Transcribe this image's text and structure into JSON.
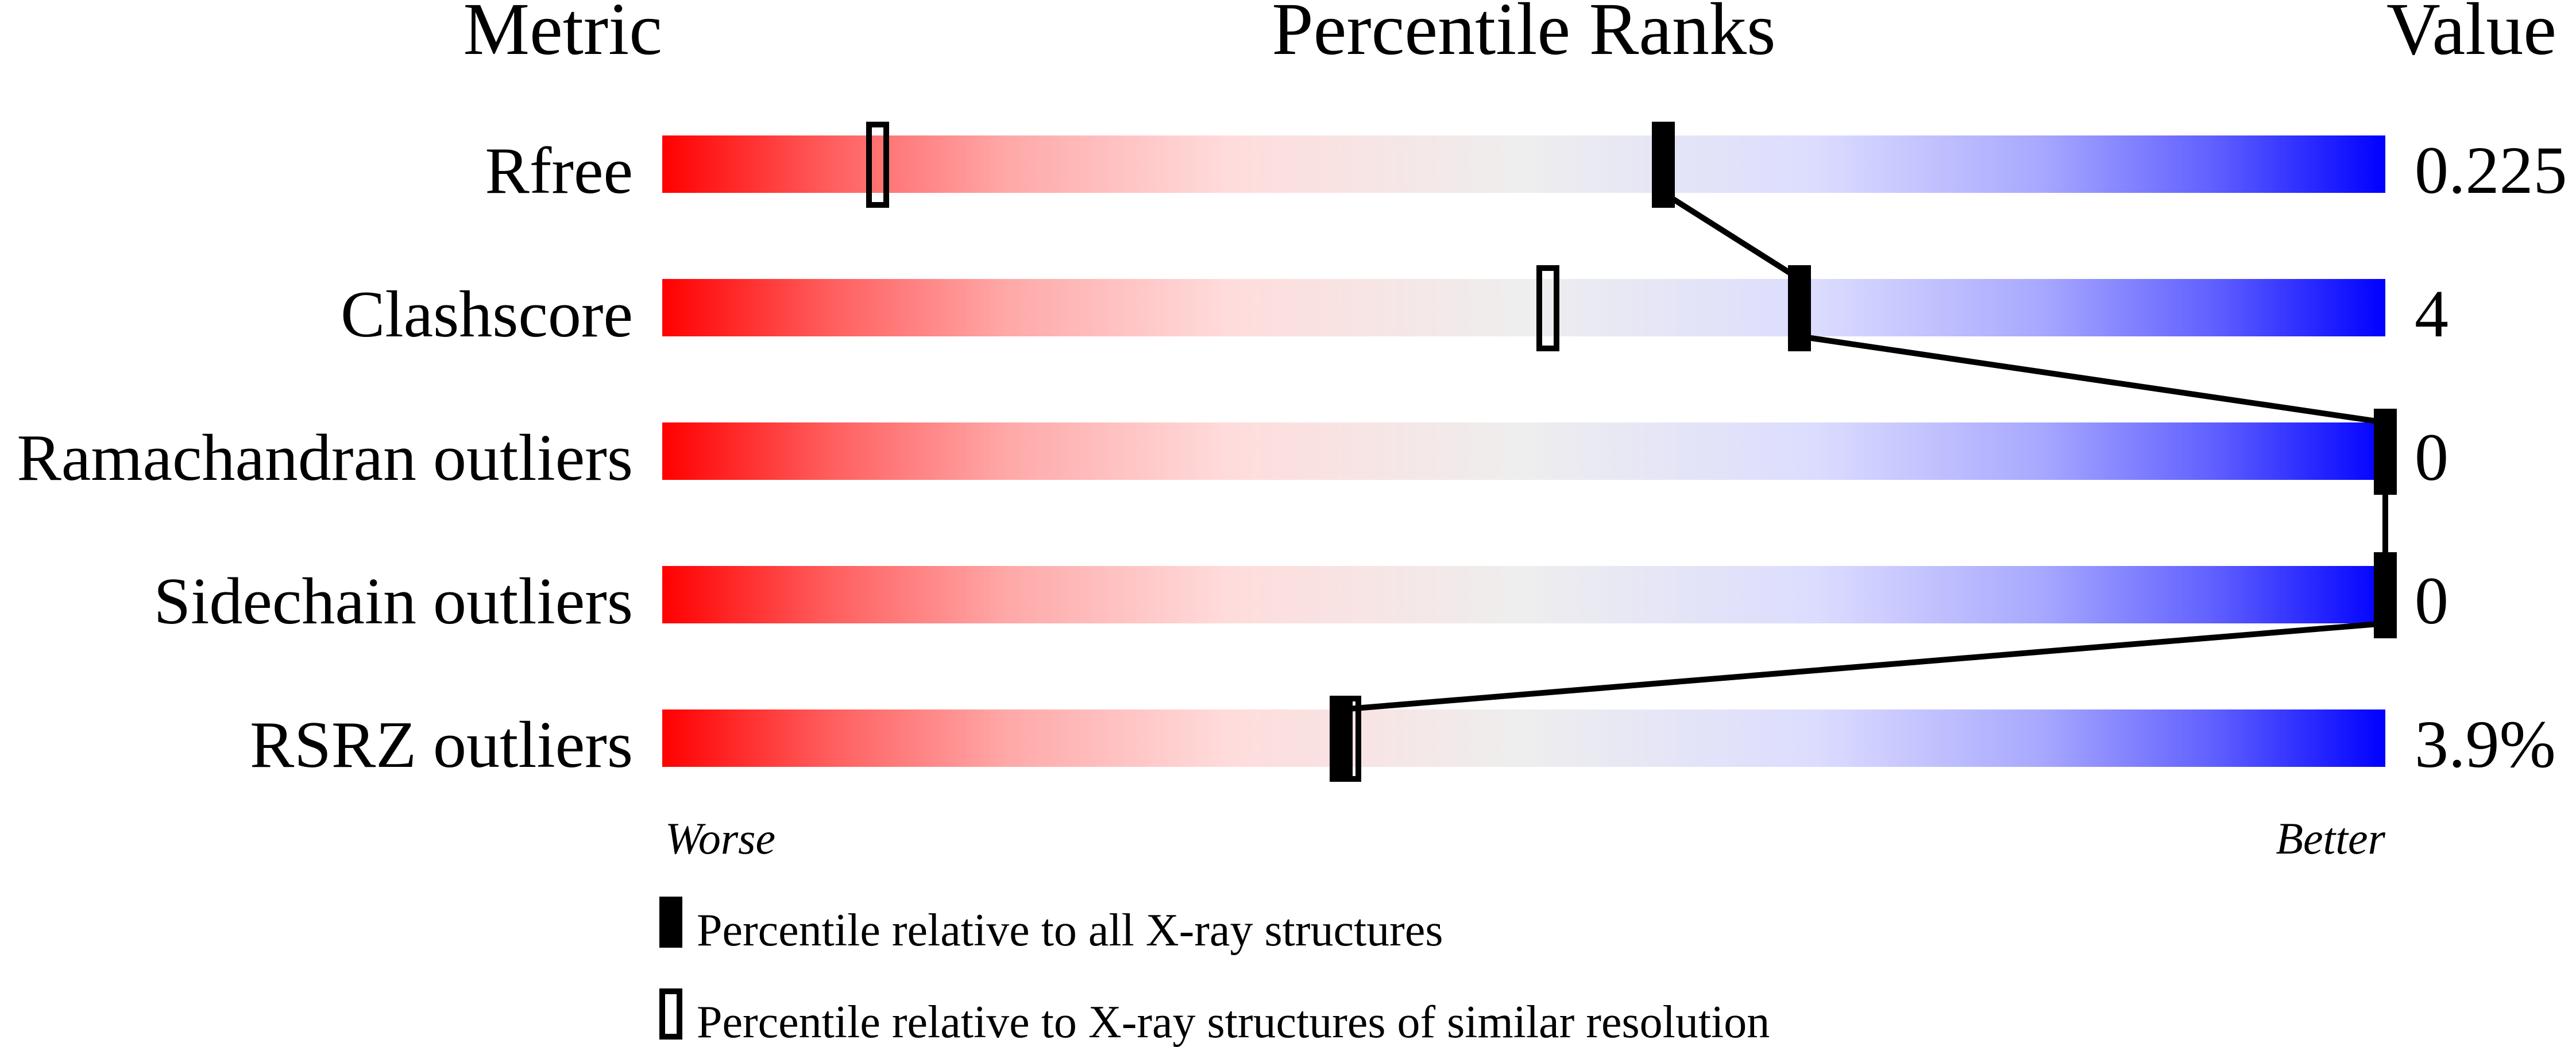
{
  "headers": {
    "metric": "Metric",
    "percentile": "Percentile Ranks",
    "value": "Value"
  },
  "chart_data": {
    "type": "percentile-slider",
    "xlim": [
      0,
      100
    ],
    "axis_left_label": "Worse",
    "axis_right_label": "Better",
    "gradient_colors": {
      "worse": "#ff0000",
      "middle": "#eeeeee",
      "better": "#0000ff"
    },
    "rows": [
      {
        "metric": "Rfree",
        "value": "0.225",
        "percentile_all": 58.1,
        "percentile_similar": 12.5
      },
      {
        "metric": "Clashscore",
        "value": "4",
        "percentile_all": 66.0,
        "percentile_similar": 51.4
      },
      {
        "metric": "Ramachandran outliers",
        "value": "0",
        "percentile_all": 100,
        "percentile_similar": 100
      },
      {
        "metric": "Sidechain outliers",
        "value": "0",
        "percentile_all": 100,
        "percentile_similar": 100
      },
      {
        "metric": "RSRZ outliers",
        "value": "3.9%",
        "percentile_all": 39.4,
        "percentile_similar": 39.9
      }
    ],
    "legend": {
      "filled": "Percentile relative to all X-ray structures",
      "open": "Percentile relative to X-ray structures of similar resolution"
    }
  }
}
